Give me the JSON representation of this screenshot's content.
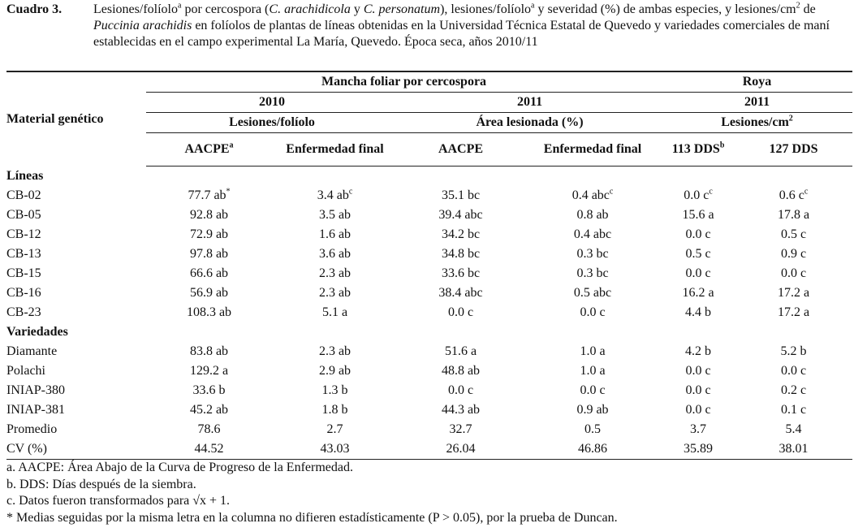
{
  "caption": {
    "label": "Cuadro 3.",
    "parts": [
      "Lesiones/folíolo",
      "a",
      " por cercospora (",
      "C. arachidicola",
      " y ",
      "C. personatum",
      "), lesiones/folíolo",
      "a",
      " y severidad (%) de ambas especies, y lesiones/cm",
      "2",
      " de ",
      "Puccinia arachidis",
      " en folíolos de plantas de líneas obtenidas en la Universidad Técnica Estatal de Quevedo y variedades comerciales de maní establecidas en el campo experimental La María, Quevedo. Época seca, años 2010/11"
    ]
  },
  "table": {
    "header": {
      "material": "Material genético",
      "group1": "Mancha foliar por cercospora",
      "group2": "Roya",
      "year1": "2010",
      "year2": "2011",
      "year3": "2011",
      "sub1": "Lesiones/folíolo",
      "sub2": "Área lesionada (%)",
      "sub3": {
        "text": "Lesiones/cm",
        "sup": "2"
      },
      "columns": [
        {
          "text": "AACPE",
          "sup": "a"
        },
        {
          "text": "Enfermedad final"
        },
        {
          "text": "AACPE"
        },
        {
          "text": "Enfermedad final"
        },
        {
          "text": "113 DDS",
          "sup": "b"
        },
        {
          "text": "127 DDS"
        }
      ]
    },
    "rows": [
      {
        "section": "Líneas"
      },
      {
        "label": "CB-02",
        "cells": [
          {
            "text": "77.7 ab",
            "sup": "*"
          },
          {
            "text": "3.4 ab",
            "sup": "c"
          },
          "35.1 bc",
          {
            "text": "0.4 abc",
            "sup": "c"
          },
          {
            "text": "0.0 c",
            "sup": "c"
          },
          {
            "text": "0.6 c",
            "sup": "c"
          }
        ]
      },
      {
        "label": "CB-05",
        "cells": [
          "92.8 ab",
          "3.5 ab",
          "39.4 abc",
          "0.8 ab",
          "15.6 a",
          "17.8 a"
        ]
      },
      {
        "label": "CB-12",
        "cells": [
          "72.9 ab",
          "1.6 ab",
          "34.2 bc",
          "0.4 abc",
          "0.0 c",
          "0.5 c"
        ]
      },
      {
        "label": "CB-13",
        "cells": [
          "97.8 ab",
          "3.6 ab",
          "34.8 bc",
          "0.3 bc",
          "0.5 c",
          "0.9 c"
        ]
      },
      {
        "label": "CB-15",
        "cells": [
          "66.6 ab",
          "2.3 ab",
          "33.6 bc",
          "0.3 bc",
          "0.0 c",
          "0.0 c"
        ]
      },
      {
        "label": "CB-16",
        "cells": [
          "56.9 ab",
          "2.3 ab",
          "38.4 abc",
          "0.5 abc",
          "16.2 a",
          "17.2 a"
        ]
      },
      {
        "label": "CB-23",
        "cells": [
          "108.3 ab",
          "5.1 a",
          "0.0 c",
          "0.0 c",
          "4.4 b",
          "17.2 a"
        ]
      },
      {
        "section": "Variedades"
      },
      {
        "label": "Diamante",
        "cells": [
          "83.8 ab",
          "2.3 ab",
          "51.6 a",
          "1.0 a",
          "4.2 b",
          "5.2 b"
        ]
      },
      {
        "label": "Polachi",
        "cells": [
          "129.2 a",
          "2.9 ab",
          "48.8 ab",
          "1.0 a",
          "0.0 c",
          "0.0 c"
        ]
      },
      {
        "label": "INIAP-380",
        "cells": [
          "33.6 b",
          "1.3 b",
          "0.0 c",
          "0.0 c",
          "0.0 c",
          "0.2 c"
        ]
      },
      {
        "label": "INIAP-381",
        "cells": [
          "45.2 ab",
          "1.8 b",
          "44.3 ab",
          "0.9 ab",
          "0.0 c",
          "0.1 c"
        ]
      },
      {
        "label": "Promedio",
        "cells": [
          "78.6",
          "2.7",
          "32.7",
          "0.5",
          "3.7",
          "5.4"
        ]
      },
      {
        "label": "CV (%)",
        "cells": [
          "44.52",
          "43.03",
          "26.04",
          "46.86",
          "35.89",
          "38.01"
        ]
      }
    ]
  },
  "footnotes": [
    "a. AACPE: Área Abajo de la Curva de Progreso de la Enfermedad.",
    "b. DDS: Días después de la siembra.",
    "c. Datos fueron transformados para √x + 1.",
    "* Medias seguidas por la misma letra en la columna no difieren estadísticamente (P > 0.05), por la prueba de Duncan."
  ]
}
